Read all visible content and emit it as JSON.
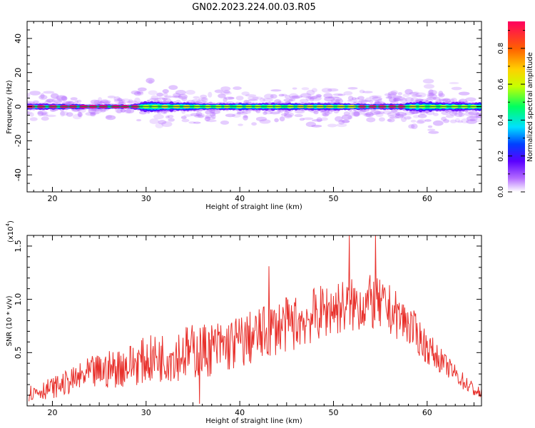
{
  "title": "GN02.2023.224.00.03.R05",
  "colors": {
    "line": "#e8312c",
    "axis": "#000000",
    "colormap": [
      "#ffffff",
      "#b36bff",
      "#5a00ff",
      "#0040ff",
      "#00e0ff",
      "#00ff60",
      "#c8ff00",
      "#ffd000",
      "#ff6000",
      "#ff0060"
    ]
  },
  "chart_data": [
    {
      "type": "heatmap",
      "xlabel": "Height of straight line (km)",
      "ylabel": "Frequency (Hz)",
      "xlim": [
        17.3,
        65.8
      ],
      "ylim": [
        -50,
        50
      ],
      "xticks": [
        20,
        30,
        40,
        50,
        60
      ],
      "yticks": [
        -40,
        -20,
        0,
        20,
        40
      ],
      "band_center_hz": 0,
      "band": [
        {
          "x": 17.5,
          "halfwidth_hz": 2.0,
          "amp": 0.9
        },
        {
          "x": 20,
          "halfwidth_hz": 2.0,
          "amp": 0.9
        },
        {
          "x": 24,
          "halfwidth_hz": 1.5,
          "amp": 1.0
        },
        {
          "x": 28.5,
          "halfwidth_hz": 1.5,
          "amp": 1.0
        },
        {
          "x": 30,
          "halfwidth_hz": 3.5,
          "amp": 0.55
        },
        {
          "x": 34,
          "halfwidth_hz": 3.0,
          "amp": 0.65
        },
        {
          "x": 36,
          "halfwidth_hz": 2.5,
          "amp": 0.45
        },
        {
          "x": 40,
          "halfwidth_hz": 2.5,
          "amp": 0.5
        },
        {
          "x": 45,
          "halfwidth_hz": 2.5,
          "amp": 0.55
        },
        {
          "x": 50,
          "halfwidth_hz": 2.5,
          "amp": 0.75
        },
        {
          "x": 54,
          "halfwidth_hz": 2.0,
          "amp": 0.85
        },
        {
          "x": 57,
          "halfwidth_hz": 2.0,
          "amp": 0.9
        },
        {
          "x": 59,
          "halfwidth_hz": 3.5,
          "amp": 0.55
        },
        {
          "x": 62,
          "halfwidth_hz": 3.0,
          "amp": 0.6
        },
        {
          "x": 65.8,
          "halfwidth_hz": 3.0,
          "amp": 0.55
        }
      ],
      "colorbar": {
        "label": "Normalized spectral amplitude",
        "range": [
          0.0,
          0.95
        ],
        "ticks": [
          0.0,
          0.2,
          0.4,
          0.6,
          0.8
        ]
      }
    },
    {
      "type": "line",
      "xlabel": "Height of straight line (km)",
      "ylabel": "SNR (10 * v/v)",
      "yscale_label": "(x10",
      "yscale_exponent": "4",
      "y_multiplier": 10000,
      "xlim": [
        17.3,
        65.8
      ],
      "ylim": [
        0.0,
        1.6
      ],
      "xticks": [
        20,
        30,
        40,
        50,
        60
      ],
      "yticks": [
        0.5,
        1.0,
        1.5
      ],
      "series": [
        {
          "values": {
            "x": [
              17.5,
              20,
              22,
              24,
              26,
              28,
              30,
              32,
              34,
              36,
              38,
              40,
              42,
              44,
              46,
              48,
              50,
              52,
              54,
              56,
              58,
              60,
              62,
              64,
              65.8
            ],
            "y": [
              0.12,
              0.17,
              0.23,
              0.3,
              0.34,
              0.38,
              0.43,
              0.46,
              0.5,
              0.52,
              0.55,
              0.6,
              0.66,
              0.74,
              0.78,
              0.85,
              0.92,
              0.94,
              0.97,
              0.9,
              0.77,
              0.55,
              0.38,
              0.22,
              0.1
            ]
          },
          "noise_amplitude": [
            0.08,
            0.1,
            0.12,
            0.16,
            0.18,
            0.2,
            0.22,
            0.24,
            0.26,
            0.26,
            0.26,
            0.26,
            0.26,
            0.26,
            0.26,
            0.26,
            0.26,
            0.26,
            0.26,
            0.24,
            0.2,
            0.16,
            0.1,
            0.08,
            0.06
          ],
          "peaks": [
            {
              "x": 35.7,
              "y": 0.0
            },
            {
              "x": 43.1,
              "y": 1.31
            },
            {
              "x": 51.7,
              "y": 1.6
            },
            {
              "x": 54.5,
              "y": 1.6
            }
          ]
        }
      ]
    }
  ]
}
